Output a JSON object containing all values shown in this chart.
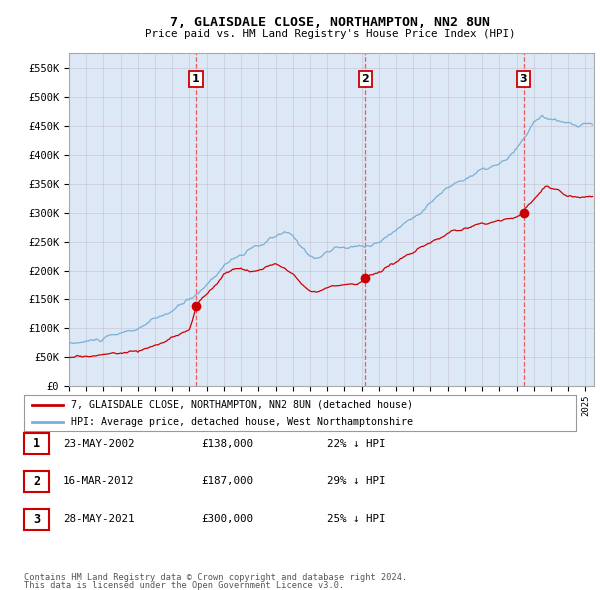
{
  "title": "7, GLAISDALE CLOSE, NORTHAMPTON, NN2 8UN",
  "subtitle": "Price paid vs. HM Land Registry's House Price Index (HPI)",
  "plot_bg_color": "#dce8f5",
  "ylabel_ticks": [
    "£0",
    "£50K",
    "£100K",
    "£150K",
    "£200K",
    "£250K",
    "£300K",
    "£350K",
    "£400K",
    "£450K",
    "£500K",
    "£550K"
  ],
  "ytick_values": [
    0,
    50000,
    100000,
    150000,
    200000,
    250000,
    300000,
    350000,
    400000,
    450000,
    500000,
    550000
  ],
  "ylim": [
    0,
    575000
  ],
  "xlim_start": 1995.0,
  "xlim_end": 2025.5,
  "legend_line1": "7, GLAISDALE CLOSE, NORTHAMPTON, NN2 8UN (detached house)",
  "legend_line2": "HPI: Average price, detached house, West Northamptonshire",
  "footer1": "Contains HM Land Registry data © Crown copyright and database right 2024.",
  "footer2": "This data is licensed under the Open Government Licence v3.0.",
  "sale_points": [
    {
      "num": 1,
      "date": "23-MAY-2002",
      "price": 138000,
      "year": 2002.38,
      "pct": "22%",
      "dir": "↓"
    },
    {
      "num": 2,
      "date": "16-MAR-2012",
      "price": 187000,
      "year": 2012.21,
      "pct": "29%",
      "dir": "↓"
    },
    {
      "num": 3,
      "date": "28-MAY-2021",
      "price": 300000,
      "year": 2021.41,
      "pct": "25%",
      "dir": "↓"
    }
  ],
  "red_color": "#cc0000",
  "blue_color": "#7aafd4",
  "vline_color": "#ee4444",
  "grid_color": "#c8c8d8",
  "border_color": "#cc0000"
}
